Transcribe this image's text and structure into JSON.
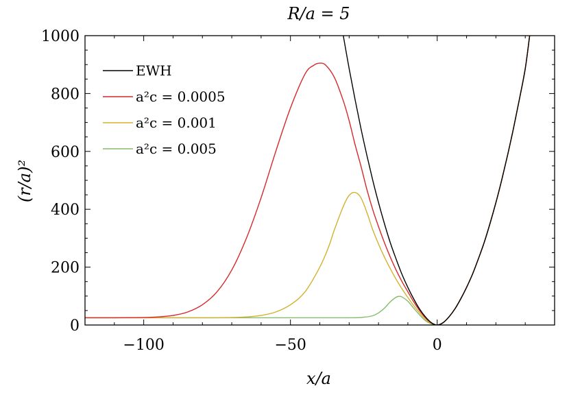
{
  "chart_data": {
    "type": "line",
    "title": "R/a = 5",
    "xlabel": "x/a",
    "ylabel": "(r/a)²",
    "xlim": [
      -120,
      40
    ],
    "ylim": [
      0,
      1000
    ],
    "x_ticks": [
      -100,
      -50,
      0
    ],
    "x_tick_labels": [
      "−100",
      "−50",
      "0"
    ],
    "y_ticks": [
      0,
      200,
      400,
      600,
      800,
      1000
    ],
    "y_tick_labels": [
      "0",
      "200",
      "400",
      "600",
      "800",
      "1000"
    ],
    "grid": false,
    "legend_position": "top-left",
    "series": [
      {
        "name": "EWH",
        "color": "#000000",
        "x": [
          -32,
          -30,
          -28,
          -26,
          -24,
          -22,
          -20,
          -18,
          -16,
          -14,
          -12,
          -10,
          -8,
          -6,
          -4,
          -2,
          0,
          2,
          4,
          6,
          8,
          10,
          12,
          14,
          16,
          18,
          20,
          22,
          24,
          26,
          28,
          30,
          31.5
        ],
        "y": [
          1000,
          886,
          780,
          680,
          588,
          502,
          423,
          351,
          285,
          228,
          175,
          130,
          90,
          55,
          28,
          8,
          0,
          8,
          28,
          55,
          90,
          130,
          175,
          228,
          285,
          351,
          423,
          502,
          588,
          680,
          780,
          886,
          1000
        ]
      },
      {
        "name": "a²c = 0.0005",
        "color": "#d62728",
        "x": [
          -120,
          -110,
          -100,
          -95,
          -90,
          -85,
          -80,
          -75,
          -70,
          -65,
          -60,
          -55,
          -50,
          -45,
          -42,
          -40,
          -38,
          -35,
          -32,
          -30,
          -28,
          -26,
          -24,
          -22,
          -20,
          -18,
          -16,
          -14,
          -12,
          -10,
          -8,
          -6,
          -4,
          -2,
          0,
          2,
          4,
          6,
          8,
          10,
          12,
          14,
          16,
          18,
          20,
          22,
          24,
          26,
          28,
          30,
          31.5
        ],
        "y": [
          25,
          25,
          26,
          28,
          33,
          45,
          70,
          115,
          190,
          300,
          440,
          600,
          750,
          868,
          898,
          905,
          898,
          855,
          775,
          706,
          624,
          550,
          470,
          400,
          340,
          285,
          235,
          190,
          150,
          115,
          80,
          50,
          25,
          7,
          0,
          8,
          28,
          55,
          90,
          130,
          175,
          228,
          285,
          351,
          423,
          502,
          588,
          680,
          780,
          886,
          1000
        ]
      },
      {
        "name": "a²c = 0.001",
        "color": "#d4b02e",
        "x": [
          -120,
          -100,
          -80,
          -70,
          -65,
          -60,
          -55,
          -50,
          -45,
          -40,
          -37,
          -35,
          -32,
          -30,
          -28,
          -26,
          -24,
          -22,
          -20,
          -18,
          -16,
          -14,
          -12,
          -10,
          -8,
          -6,
          -4,
          -2,
          0,
          2,
          4,
          6,
          8,
          10,
          12,
          14,
          16,
          18,
          20,
          22,
          24,
          26,
          28,
          30,
          31.5
        ],
        "y": [
          25,
          25,
          25,
          26,
          28,
          33,
          45,
          70,
          115,
          200,
          270,
          330,
          410,
          448,
          458,
          440,
          390,
          330,
          280,
          235,
          195,
          158,
          125,
          95,
          67,
          42,
          20,
          5,
          0,
          8,
          28,
          55,
          90,
          130,
          175,
          228,
          285,
          351,
          423,
          502,
          588,
          680,
          780,
          886,
          1000
        ]
      },
      {
        "name": "a²c = 0.005",
        "color": "#82bb6c",
        "x": [
          -120,
          -100,
          -60,
          -30,
          -25,
          -22,
          -20,
          -18,
          -16,
          -14,
          -13,
          -12,
          -10,
          -8,
          -6,
          -4,
          -2,
          0,
          2,
          4,
          6,
          8,
          10,
          12,
          14,
          16,
          18,
          20,
          22,
          24,
          26,
          28,
          30,
          31.5
        ],
        "y": [
          25,
          25,
          25,
          25,
          27,
          32,
          42,
          58,
          80,
          96,
          99,
          97,
          82,
          58,
          35,
          15,
          4,
          0,
          8,
          28,
          55,
          90,
          130,
          175,
          228,
          285,
          351,
          423,
          502,
          588,
          680,
          780,
          886,
          1000
        ]
      }
    ],
    "legend": [
      {
        "prefix": "",
        "name": "EWH",
        "suffix": ""
      },
      {
        "prefix": "a²c = ",
        "name": "a²c = 0.0005",
        "suffix": "0.0005"
      },
      {
        "prefix": "a²c = ",
        "name": "a²c = 0.001",
        "suffix": "0.001"
      },
      {
        "prefix": "a²c = ",
        "name": "a²c = 0.005",
        "suffix": "0.005"
      }
    ]
  }
}
